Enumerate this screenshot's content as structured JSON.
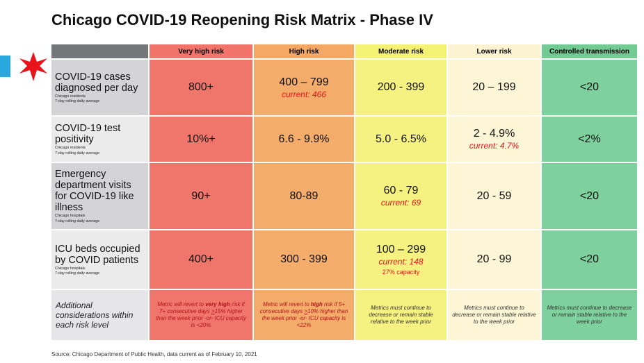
{
  "title": "Chicago COVID-19 Reopening Risk Matrix - Phase IV",
  "headers": [
    "Very high risk",
    "High risk",
    "Moderate risk",
    "Lower risk",
    "Controlled transmission"
  ],
  "colors": {
    "very_high": "#f0766b",
    "high": "#f4ac6a",
    "moderate": "#f6f281",
    "lower": "#fdf6d6",
    "controlled": "#7ed19d",
    "current_text": "#e8131b",
    "logo_blue": "#29a8e0",
    "logo_star": "#e8131b"
  },
  "rows": [
    {
      "metric": "COVID-19 cases diagnosed per day",
      "sub1": "Chicago residents",
      "sub2": "7-day rolling daily average",
      "values": [
        "800+",
        "400 – 799",
        "200 - 399",
        "20 – 199",
        "<20"
      ],
      "current": {
        "col": 1,
        "text": "current: 466"
      }
    },
    {
      "metric": "COVID-19 test positivity",
      "sub1": "Chicago residents",
      "sub2": "7-day rolling daily average",
      "values": [
        "10%+",
        "6.6 - 9.9%",
        "5.0 - 6.5%",
        "2 - 4.9%",
        "<2%"
      ],
      "current": {
        "col": 3,
        "text": "current: 4.7%"
      }
    },
    {
      "metric": "Emergency department visits for COVID-19 like illness",
      "sub1": "Chicago hospitals",
      "sub2": "7-day rolling daily average",
      "values": [
        "90+",
        "80-89",
        "60 - 79",
        "20 - 59",
        "<20"
      ],
      "current": {
        "col": 2,
        "text": "current: 69"
      }
    },
    {
      "metric": "ICU beds occupied by COVID patients",
      "sub1": "Chicago hospitals",
      "sub2": "7-day rolling daily average",
      "values": [
        "400+",
        "300 - 399",
        "100 – 299",
        "20 - 99",
        "<20"
      ],
      "current": {
        "col": 2,
        "text": "current: 148"
      },
      "capacity": "27% capacity"
    }
  ],
  "considerations": {
    "label": "Additional considerations within each risk level",
    "very_high": {
      "p1": "Metric will revert to ",
      "b1": "very high",
      "p2": " risk if 7+ consecutive days ",
      "u1": ">",
      "p3": "15% higher than the week prior -or- ICU capacity is <20%"
    },
    "high": {
      "p1": "Metric will revert to ",
      "b1": "high",
      "p2": " risk if 5+ consecutive days ",
      "u1": ">",
      "p3": "10% higher than the week prior -or- ICU capacity is <22%"
    },
    "moderate": "Metrics must continue to decrease or remain stable relative to the week prior",
    "lower": "Metrics must continue to decrease or remain stable relative to the week prior",
    "controlled": "Metrics must continue to decrease or remain stable relative to the week prior"
  },
  "footer": "Source: Chicago Department of Public Health, data current as of February 10, 2021",
  "icons": [
    "chicago-flag-stripe-icon",
    "chicago-star-icon"
  ]
}
